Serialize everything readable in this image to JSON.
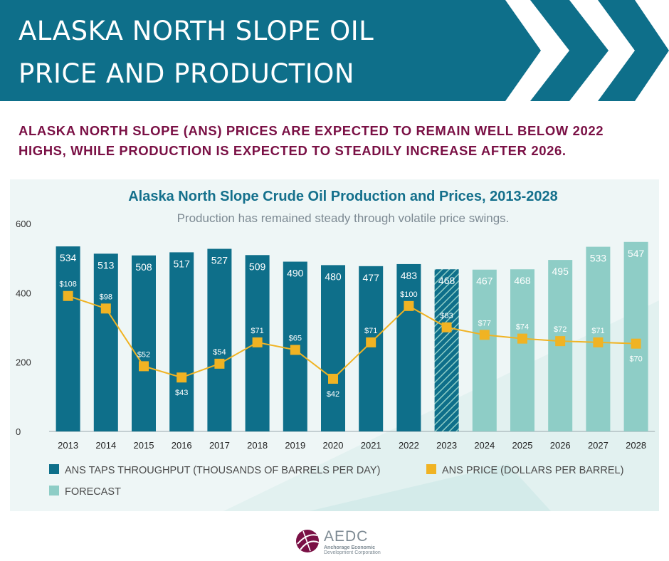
{
  "header": {
    "title_line1": "ALASKA NORTH SLOPE OIL",
    "title_line2": "PRICE AND PRODUCTION"
  },
  "subheadline": "ALASKA NORTH SLOPE (ANS) PRICES ARE EXPECTED TO REMAIN WELL BELOW 2022 HIGHS, WHILE PRODUCTION IS EXPECTED TO STEADILY INCREASE AFTER 2026.",
  "colors": {
    "banner": "#0e6f8a",
    "actual": "#0e6f8a",
    "forecast": "#8ecdc6",
    "price": "#f0b323",
    "subhead": "#7a1045",
    "chart_title": "#14708c"
  },
  "chart_data": {
    "type": "bar",
    "title": "Alaska North Slope Crude Oil Production and Prices, 2013-2028",
    "subtitle": "Production has remained steady through volatile price swings.",
    "categories": [
      "2013",
      "2014",
      "2015",
      "2016",
      "2017",
      "2018",
      "2019",
      "2020",
      "2021",
      "2022",
      "2023",
      "2024",
      "2025",
      "2026",
      "2027",
      "2028"
    ],
    "yticks": [
      0,
      200,
      400,
      600
    ],
    "ylim": [
      0,
      600
    ],
    "grid": false,
    "legend_position": "bottom",
    "series": [
      {
        "name": "ANS TAPS THROUGHPUT (THOUSANDS OF BARRELS PER DAY)",
        "type": "bar",
        "values": [
          534,
          513,
          508,
          517,
          527,
          509,
          490,
          480,
          477,
          483,
          468,
          467,
          468,
          495,
          533,
          547
        ],
        "labels": [
          "534",
          "513",
          "508",
          "517",
          "527",
          "509",
          "490",
          "480",
          "477",
          "483",
          "468",
          "467",
          "468",
          "495",
          "533",
          "547"
        ],
        "status": [
          "actual",
          "actual",
          "actual",
          "actual",
          "actual",
          "actual",
          "actual",
          "actual",
          "actual",
          "actual",
          "estimate",
          "forecast",
          "forecast",
          "forecast",
          "forecast",
          "forecast"
        ]
      },
      {
        "name": "ANS PRICE (DOLLARS PER BARREL)",
        "type": "line",
        "values": [
          108,
          98,
          52,
          43,
          54,
          71,
          65,
          42,
          71,
          100,
          83,
          77,
          74,
          72,
          71,
          70
        ],
        "labels": [
          "$108",
          "$98",
          "$52",
          "$43",
          "$54",
          "$71",
          "$65",
          "$42",
          "$71",
          "$100",
          "$83",
          "$77",
          "$74",
          "$72",
          "$71",
          "$70"
        ]
      }
    ],
    "legend": {
      "actual": "ANS TAPS THROUGHPUT (THOUSANDS OF BARRELS PER DAY)",
      "price": "ANS PRICE (DOLLARS PER BARREL)",
      "forecast": "FORECAST"
    }
  },
  "logo": {
    "name": "AEDC",
    "sub_line1": "Anchorage Economic",
    "sub_line2": "Development Corporation"
  }
}
